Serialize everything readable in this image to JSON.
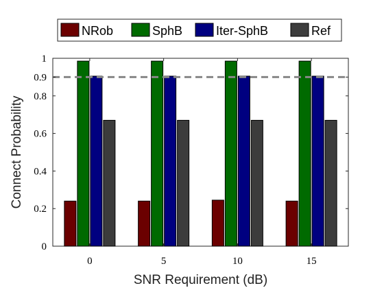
{
  "chart_data": {
    "type": "bar",
    "categories": [
      "0",
      "5",
      "10",
      "15"
    ],
    "series": [
      {
        "name": "NRob",
        "values": [
          0.24,
          0.24,
          0.245,
          0.24
        ],
        "color": "#6b0000"
      },
      {
        "name": "SphB",
        "values": [
          0.985,
          0.985,
          0.985,
          0.985
        ],
        "color": "#006a00"
      },
      {
        "name": "Iter-SphB",
        "values": [
          0.905,
          0.905,
          0.905,
          0.905
        ],
        "color": "#000080"
      },
      {
        "name": "Ref",
        "values": [
          0.67,
          0.67,
          0.67,
          0.67
        ],
        "color": "#3c3c3c"
      }
    ],
    "title": "",
    "xlabel": "SNR Requirement (dB)",
    "ylabel": "Connect Probability",
    "ylim": [
      0,
      1
    ],
    "yticks": [
      "0",
      "0.2",
      "0.4",
      "0.6",
      "0.8",
      "0.9",
      "1"
    ],
    "reference_line": {
      "value": 0.9,
      "style": "dashed",
      "color": "#888888"
    },
    "legend_position": "top",
    "grid": false
  }
}
